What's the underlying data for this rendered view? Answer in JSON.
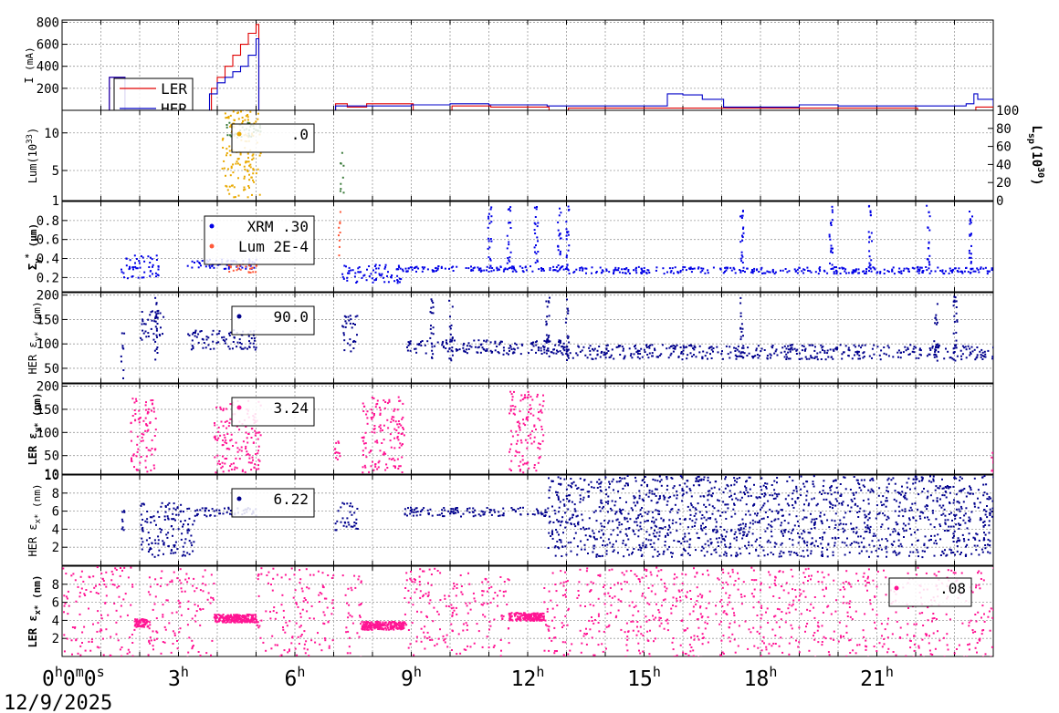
{
  "chart_data": {
    "type": "scatter",
    "date": "12/9/2025",
    "x_axis": {
      "unit": "hours",
      "range": [
        0,
        24
      ],
      "ticks": [
        {
          "at": 0,
          "h": "0",
          "m": "0",
          "s": "0"
        },
        {
          "at": 3,
          "h": "3"
        },
        {
          "at": 6,
          "h": "6"
        },
        {
          "at": 9,
          "h": "9"
        },
        {
          "at": 12,
          "h": "12"
        },
        {
          "at": 15,
          "h": "15"
        },
        {
          "at": 18,
          "h": "18"
        },
        {
          "at": 21,
          "h": "21"
        }
      ]
    },
    "panels": [
      {
        "id": "current",
        "ylabel_main": "I",
        "ylabel_unit": "(mA)",
        "ylim": [
          0,
          820
        ],
        "yticks": [
          200,
          400,
          600,
          800
        ],
        "series": [
          {
            "name": "LER",
            "color": "#e00000",
            "style": "line",
            "x": [
              0,
              1.2,
              1.22,
              1.6,
              1.62,
              2.0,
              3.8,
              3.85,
              4.0,
              4.2,
              4.4,
              4.6,
              4.8,
              5.0,
              5.05,
              5.07,
              7.0,
              7.05,
              7.3,
              7.35,
              7.8,
              7.85,
              8.0,
              9.0,
              9.05,
              10.0,
              10.05,
              11.0,
              11.05,
              12.0,
              12.5,
              12.55,
              13.0,
              13.05,
              15.0,
              18.0,
              21.0,
              22.0,
              22.05,
              23.5,
              23.55,
              24.0
            ],
            "y": [
              0,
              0,
              300,
              300,
              0,
              0,
              0,
              200,
              300,
              400,
              500,
              600,
              700,
              780,
              780,
              0,
              0,
              60,
              60,
              30,
              30,
              60,
              60,
              60,
              0,
              0,
              40,
              40,
              30,
              30,
              30,
              0,
              0,
              20,
              20,
              20,
              20,
              20,
              0,
              0,
              30,
              30
            ]
          },
          {
            "name": "HER",
            "color": "#0000c8",
            "style": "line",
            "x": [
              0,
              1.2,
              1.22,
              1.6,
              1.62,
              3.6,
              3.8,
              4.0,
              4.2,
              4.4,
              4.6,
              4.8,
              5.0,
              5.05,
              5.07,
              7.0,
              7.05,
              8.0,
              9.0,
              10.0,
              11.0,
              12.0,
              12.5,
              13.0,
              15.5,
              15.6,
              16.0,
              16.2,
              16.5,
              17.0,
              17.05,
              18.5,
              19.0,
              20.0,
              21.0,
              23.0,
              23.3,
              23.5,
              23.6,
              24.0
            ],
            "y": [
              0,
              0,
              300,
              300,
              0,
              0,
              150,
              250,
              300,
              350,
              400,
              500,
              650,
              650,
              0,
              0,
              40,
              40,
              50,
              60,
              50,
              50,
              40,
              40,
              40,
              150,
              140,
              140,
              100,
              100,
              30,
              30,
              50,
              40,
              40,
              40,
              60,
              150,
              100,
              40
            ]
          }
        ],
        "legend": {
          "position": "top-left",
          "entries": [
            "LER",
            "HER"
          ]
        }
      },
      {
        "id": "lumi",
        "ylabel_main": "Lum(10",
        "ylabel_sup": "33",
        "ylabel_end": ")",
        "ylim": [
          1,
          13
        ],
        "yticks": [
          1,
          5,
          10
        ],
        "right_axis": {
          "label_main": "L",
          "label_sub": "sp",
          "label_mid": "(10",
          "label_sup": "30",
          "label_end": ")",
          "ylim": [
            0,
            100
          ],
          "yticks": [
            0,
            20,
            40,
            60,
            80,
            100
          ]
        },
        "series": [
          {
            "name": "lum-orange",
            "color": "#e8a800",
            "style": "dots",
            "ranges": [
              [
                4.1,
                5.1,
                1.5,
                13.5
              ]
            ]
          },
          {
            "name": "lum-green",
            "color": "#3a7a3a",
            "style": "dots",
            "ranges": [
              [
                4.2,
                5.1,
                9.5,
                11.5
              ],
              [
                7.15,
                7.25,
                1.5,
                8
              ]
            ]
          }
        ],
        "legend": {
          "position": "top-left",
          "entries": [
            ".0"
          ]
        }
      },
      {
        "id": "sigma",
        "ylabel_main": "Σ",
        "ylabel_sub": "y",
        "ylabel_sup": "*",
        "ylabel_unit": "(μm)",
        "ylim": [
          0.05,
          1.0
        ],
        "yticks": [
          0.2,
          0.4,
          0.6,
          0.8
        ],
        "series": [
          {
            "name": "XRM",
            "color": "#0000e6",
            "style": "dots",
            "ranges": [
              [
                1.5,
                2.5,
                0.2,
                0.45
              ],
              [
                3.2,
                5.0,
                0.3,
                0.4
              ],
              [
                7.2,
                8.8,
                0.15,
                0.35
              ],
              [
                8.8,
                13.0,
                0.27,
                0.33
              ],
              [
                13.0,
                24.0,
                0.25,
                0.32
              ]
            ],
            "spikes": [
              11.0,
              11.5,
              12.2,
              12.8,
              13.0,
              17.5,
              19.8,
              20.8,
              22.3,
              23.4
            ]
          },
          {
            "name": "Lum",
            "color": "#ff5a3a",
            "style": "dots",
            "ranges": [
              [
                4.2,
                5.0,
                0.26,
                0.35
              ],
              [
                7.1,
                7.2,
                0.4,
                0.9
              ]
            ]
          }
        ],
        "legend": {
          "position": "top-left",
          "entries": [
            "XRM  .30",
            "Lum 2E-4"
          ]
        }
      },
      {
        "id": "her-eps-y",
        "ylabel_main": "HER ε",
        "ylabel_sub": "y*",
        "ylabel_unit": "(pm)",
        "ylim": [
          20,
          205
        ],
        "yticks": [
          50,
          100,
          150,
          200
        ],
        "series": [
          {
            "name": "HER εy",
            "color": "#00008c",
            "style": "dots",
            "ranges": [
              [
                1.5,
                1.6,
                30,
                130
              ],
              [
                2.0,
                2.6,
                110,
                170
              ],
              [
                3.2,
                5.0,
                90,
                130
              ],
              [
                7.2,
                7.6,
                80,
                160
              ],
              [
                8.8,
                13.0,
                80,
                110
              ],
              [
                13.0,
                24.0,
                70,
                100
              ]
            ],
            "spikes": [
              2.4,
              9.5,
              10.0,
              12.5,
              13.0,
              17.5,
              22.5,
              23.0
            ]
          }
        ],
        "legend": {
          "position": "top-left",
          "entries": [
            "90.0"
          ]
        }
      },
      {
        "id": "ler-eps-y",
        "ylabel_main": "LER ε",
        "ylabel_sub": "y*",
        "ylabel_unit": "(pm)",
        "ylim": [
          10,
          205
        ],
        "yticks": [
          10,
          50,
          100,
          150,
          200
        ],
        "series": [
          {
            "name": "LER εy",
            "color": "#ff1493",
            "style": "dots",
            "ranges": [
              [
                1.75,
                2.4,
                15,
                180
              ],
              [
                3.9,
                5.1,
                15,
                170
              ],
              [
                7.0,
                7.2,
                30,
                90
              ],
              [
                7.7,
                8.8,
                15,
                180
              ],
              [
                11.5,
                12.4,
                15,
                190
              ],
              [
                23.9,
                24.0,
                15,
                60
              ]
            ]
          }
        ],
        "legend": {
          "position": "top-left",
          "entries": [
            "3.24"
          ]
        }
      },
      {
        "id": "her-eps-x",
        "ylabel_main": "HER ε",
        "ylabel_sub": "x*",
        "ylabel_unit": "(nm)",
        "ylim": [
          0,
          10
        ],
        "yticks": [
          2,
          4,
          6,
          8,
          10
        ],
        "series": [
          {
            "name": "HER εx",
            "color": "#00008c",
            "style": "dots",
            "ranges": [
              [
                1.5,
                1.6,
                4,
                7
              ],
              [
                2.0,
                3.4,
                1,
                7
              ],
              [
                3.4,
                5.0,
                5.5,
                6.5
              ],
              [
                7.0,
                7.6,
                4,
                7
              ],
              [
                8.8,
                12.5,
                5.5,
                6.5
              ],
              [
                12.5,
                24.0,
                1,
                10
              ]
            ]
          }
        ],
        "legend": {
          "position": "top-left",
          "entries": [
            "6.22"
          ]
        }
      },
      {
        "id": "ler-eps-x",
        "ylabel_main": "LER ε",
        "ylabel_sub": "x*",
        "ylabel_unit": "(nm)",
        "ylim": [
          0,
          10
        ],
        "yticks": [
          2,
          4,
          6,
          8
        ],
        "series": [
          {
            "name": "LER εx",
            "color": "#ff1493",
            "style": "dots",
            "ranges": [
              [
                0,
                1.85,
                0,
                10
              ],
              [
                2.2,
                3.9,
                0,
                10
              ],
              [
                5.0,
                7.0,
                0,
                10
              ],
              [
                7.2,
                7.7,
                0,
                10
              ],
              [
                8.8,
                11.5,
                0,
                10
              ],
              [
                12.4,
                24.0,
                0,
                10
              ]
            ],
            "bands": [
              [
                1.85,
                2.2,
                3.8
              ],
              [
                3.9,
                5.0,
                4.3
              ],
              [
                7.7,
                8.8,
                3.5
              ],
              [
                11.5,
                12.4,
                4.5
              ]
            ]
          }
        ],
        "legend": {
          "position": "top-right",
          "entries": [
            ".08"
          ]
        }
      }
    ]
  }
}
